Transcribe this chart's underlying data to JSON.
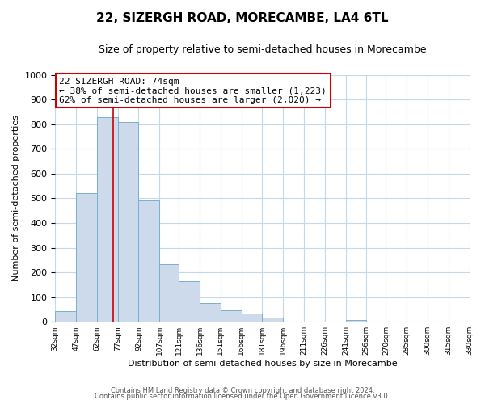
{
  "title": "22, SIZERGH ROAD, MORECAMBE, LA4 6TL",
  "subtitle": "Size of property relative to semi-detached houses in Morecambe",
  "xlabel": "Distribution of semi-detached houses by size in Morecambe",
  "ylabel": "Number of semi-detached properties",
  "bar_color": "#ccdaeb",
  "bar_edge_color": "#7aaed0",
  "bar_left_edges": [
    32,
    47,
    62,
    77,
    92,
    107,
    121,
    136,
    151,
    166,
    181,
    196,
    211,
    226,
    241,
    256,
    270,
    285,
    300,
    315
  ],
  "bar_widths": [
    15,
    15,
    15,
    15,
    15,
    14,
    15,
    15,
    15,
    15,
    15,
    15,
    15,
    15,
    15,
    14,
    15,
    15,
    15,
    15
  ],
  "bar_heights": [
    43,
    520,
    828,
    810,
    493,
    234,
    163,
    75,
    46,
    33,
    18,
    0,
    0,
    0,
    6,
    0,
    0,
    0,
    0,
    0
  ],
  "x_tick_labels": [
    "32sqm",
    "47sqm",
    "62sqm",
    "77sqm",
    "92sqm",
    "107sqm",
    "121sqm",
    "136sqm",
    "151sqm",
    "166sqm",
    "181sqm",
    "196sqm",
    "211sqm",
    "226sqm",
    "241sqm",
    "256sqm",
    "270sqm",
    "285sqm",
    "300sqm",
    "315sqm",
    "330sqm"
  ],
  "ylim": [
    0,
    1000
  ],
  "yticks": [
    0,
    100,
    200,
    300,
    400,
    500,
    600,
    700,
    800,
    900,
    1000
  ],
  "vline_x": 74,
  "vline_color": "#cc0000",
  "annotation_title": "22 SIZERGH ROAD: 74sqm",
  "annotation_line1": "← 38% of semi-detached houses are smaller (1,223)",
  "annotation_line2": "62% of semi-detached houses are larger (2,020) →",
  "annotation_box_facecolor": "#ffffff",
  "annotation_box_edgecolor": "#cc0000",
  "footer_line1": "Contains HM Land Registry data © Crown copyright and database right 2024.",
  "footer_line2": "Contains public sector information licensed under the Open Government Licence v3.0.",
  "background_color": "#ffffff",
  "grid_color": "#c5d8ea",
  "title_fontsize": 11,
  "subtitle_fontsize": 9
}
